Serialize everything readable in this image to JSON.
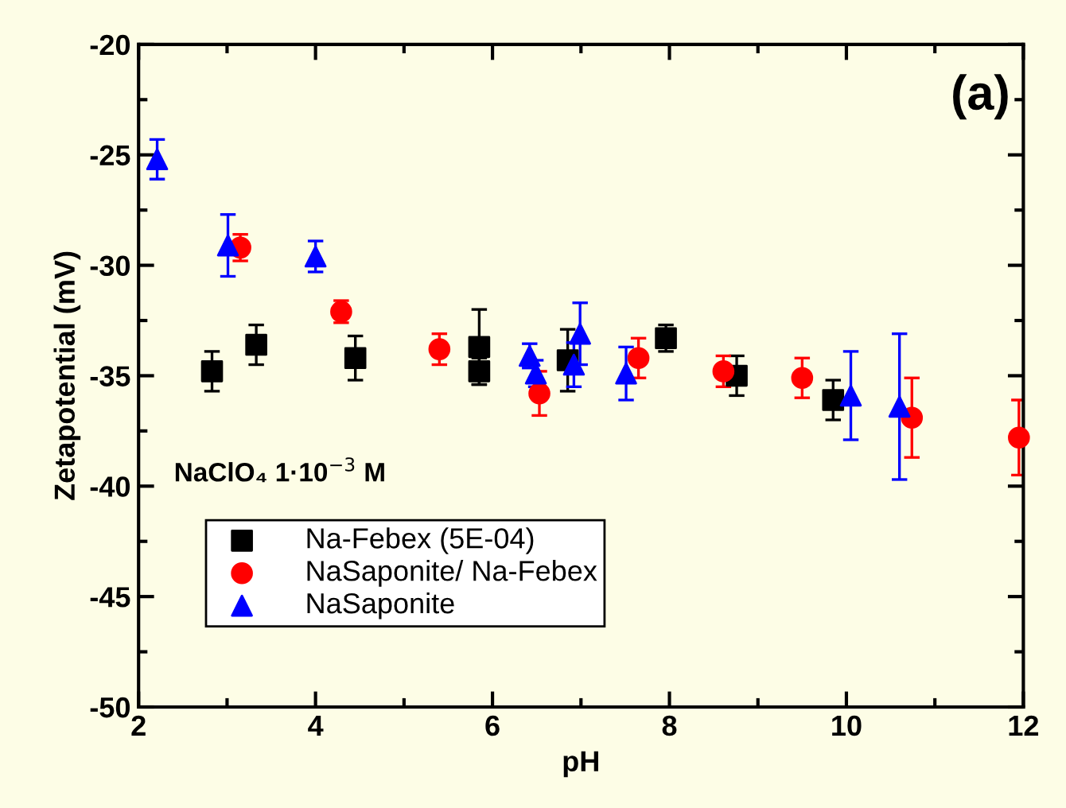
{
  "chart_data": {
    "type": "scatter",
    "xlabel": "pH",
    "ylabel": "Zetapotential (mV)",
    "xlim": [
      2,
      12
    ],
    "ylim": [
      -50,
      -20
    ],
    "xticks": [
      2,
      4,
      6,
      8,
      10,
      12
    ],
    "yticks": [
      -50,
      -45,
      -40,
      -35,
      -30,
      -25,
      -20
    ],
    "grid": false,
    "legend": "bottom left",
    "annotations": [
      {
        "text": "(a)"
      },
      {
        "text": "NaClO₄ 1·10$^{−3}$ M"
      }
    ],
    "series": [
      {
        "name": "Na-Febex (5E-04)",
        "color": "#000000",
        "marker": "square",
        "x": [
          2.83,
          3.33,
          4.45,
          5.85,
          5.85,
          6.85,
          7.96,
          8.76,
          9.85
        ],
        "values": [
          -34.8,
          -33.6,
          -34.2,
          -33.7,
          -34.8,
          -34.3,
          -33.3,
          -35.0,
          -36.1
        ],
        "errors": [
          0.9,
          0.9,
          1.0,
          1.7,
          0.6,
          1.4,
          0.6,
          0.9,
          0.9
        ]
      },
      {
        "name": "NaSaponite/ Na-Febex",
        "color": "#ff0000",
        "marker": "circle",
        "x": [
          3.15,
          4.29,
          5.4,
          6.53,
          7.65,
          8.61,
          9.5,
          10.74,
          11.95
        ],
        "values": [
          -29.2,
          -32.1,
          -33.8,
          -35.8,
          -34.2,
          -34.8,
          -35.1,
          -36.9,
          -37.8
        ],
        "errors": [
          0.6,
          0.5,
          0.7,
          1.0,
          0.9,
          0.7,
          0.9,
          1.8,
          1.7
        ]
      },
      {
        "name": "NaSaponite",
        "color": "#0000ff",
        "marker": "triangle",
        "x": [
          2.21,
          3.01,
          4.0,
          6.42,
          6.49,
          6.92,
          6.99,
          7.51,
          10.05,
          10.6
        ],
        "values": [
          -25.2,
          -29.1,
          -29.6,
          -34.1,
          -34.9,
          -34.5,
          -33.1,
          -34.9,
          -35.9,
          -36.4
        ],
        "errors": [
          0.9,
          1.4,
          0.7,
          0.55,
          0.6,
          1.0,
          1.4,
          1.2,
          2.0,
          3.3
        ]
      }
    ]
  }
}
